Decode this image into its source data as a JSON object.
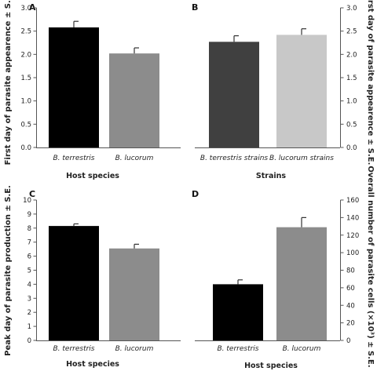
{
  "chart_data": [
    {
      "type": "bar",
      "panel": "A",
      "categories": [
        "B. terrestris",
        "B. lucorum"
      ],
      "values": [
        2.58,
        2.02
      ],
      "errors": [
        0.13,
        0.12
      ],
      "colors": [
        "#000000",
        "#8c8c8c"
      ],
      "xlabel": "Host species",
      "ylabel": "First day of parasite appearence ± S.E.",
      "ylim": [
        0,
        3.0
      ],
      "yticks": [
        "0.0",
        "0.5",
        "1.0",
        "1.5",
        "2.0",
        "2.5",
        "3.0"
      ],
      "yaxis_side": "left",
      "grid": false
    },
    {
      "type": "bar",
      "panel": "B",
      "categories": [
        "B. terrestris strains",
        "B. lucorum strains"
      ],
      "values": [
        2.27,
        2.42
      ],
      "errors": [
        0.13,
        0.13
      ],
      "colors": [
        "#404040",
        "#c8c8c8"
      ],
      "xlabel": "Strains",
      "ylabel": "First day of parasite appearence ± S.E.",
      "ylim": [
        0,
        3.0
      ],
      "yticks": [
        "0.0",
        "0.5",
        "1.0",
        "1.5",
        "2.0",
        "2.5",
        "3.0"
      ],
      "yaxis_side": "right",
      "grid": false
    },
    {
      "type": "bar",
      "panel": "C",
      "categories": [
        "B. terrestris",
        "B. lucorum"
      ],
      "values": [
        8.15,
        6.55
      ],
      "errors": [
        0.15,
        0.3
      ],
      "colors": [
        "#000000",
        "#8c8c8c"
      ],
      "xlabel": "Host species",
      "ylabel": "Peak day of parasite production ± S.E.",
      "ylim": [
        0,
        10
      ],
      "yticks": [
        "0",
        "1",
        "2",
        "3",
        "4",
        "5",
        "6",
        "7",
        "8",
        "9",
        "10"
      ],
      "yaxis_side": "left",
      "grid": false
    },
    {
      "type": "bar",
      "panel": "D",
      "categories": [
        "B. terrestris",
        "B. lucorum"
      ],
      "values": [
        64,
        129
      ],
      "errors": [
        5,
        11
      ],
      "colors": [
        "#000000",
        "#8c8c8c"
      ],
      "xlabel": "Host species",
      "ylabel": "Overall number of parasite cells (×10³) ± S.E.",
      "ylim": [
        0,
        160
      ],
      "yticks": [
        "0",
        "20",
        "40",
        "60",
        "80",
        "100",
        "120",
        "140",
        "160"
      ],
      "yaxis_side": "right",
      "grid": false
    }
  ]
}
